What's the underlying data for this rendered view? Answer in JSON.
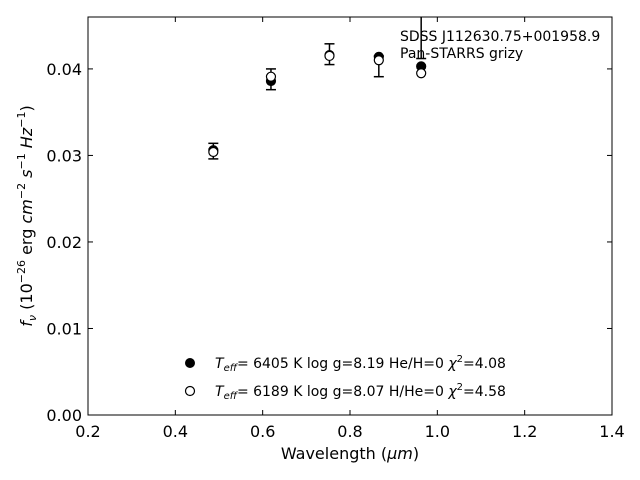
{
  "chart_data": {
    "type": "scatter",
    "xlabel_text": "Wavelength (",
    "xlabel_unit": "μm",
    "xlabel_close": ")",
    "ylabel": {
      "f": "f",
      "nu": "ν",
      "pre": " (10",
      "exp1": "−26",
      "erg": " erg ",
      "cm": "cm",
      "exp2": "−2",
      "s": " s",
      "exp3": "−1",
      "hz": " Hz",
      "exp4": "−1",
      "close": ")"
    },
    "xlim": [
      0.2,
      1.4
    ],
    "ylim": [
      0.0,
      0.046
    ],
    "xticks": [
      0.2,
      0.4,
      0.6,
      0.8,
      1.0,
      1.2,
      1.4
    ],
    "yticks": [
      0.0,
      0.01,
      0.02,
      0.03,
      0.04
    ],
    "xtick_labels": [
      "0.2",
      "0.4",
      "0.6",
      "0.8",
      "1.0",
      "1.2",
      "1.4"
    ],
    "ytick_labels": [
      "0.00",
      "0.01",
      "0.02",
      "0.03",
      "0.04"
    ],
    "annotations": [
      "SDSS J112630.75+001958.9",
      "Pan-STARRS grizy"
    ],
    "observed": {
      "x": [
        0.487,
        0.619,
        0.753,
        0.866,
        0.963
      ],
      "y": [
        0.0305,
        0.0388,
        0.0417,
        0.0403,
        0.0437
      ],
      "yerr": [
        0.0009,
        0.0012,
        0.0012,
        0.0012,
        0.0025
      ]
    },
    "series": [
      {
        "name_parts": {
          "teff": "T",
          "eff": "eff",
          "eq": "=  6405 K  log g=8.19  He/H=0  ",
          "chi": "χ",
          "sq": "2",
          "val": "=4.08"
        },
        "marker": "filled",
        "x": [
          0.487,
          0.619,
          0.753,
          0.866,
          0.963
        ],
        "y": [
          0.0306,
          0.0386,
          0.0416,
          0.0414,
          0.0403
        ]
      },
      {
        "name_parts": {
          "teff": "T",
          "eff": "eff",
          "eq": "=  6189 K  log g=8.07  H/He=0  ",
          "chi": "χ",
          "sq": "2",
          "val": "=4.58"
        },
        "marker": "open",
        "x": [
          0.487,
          0.619,
          0.753,
          0.866,
          0.963
        ],
        "y": [
          0.0304,
          0.0391,
          0.0415,
          0.041,
          0.0395
        ]
      }
    ],
    "legend_placement": "lower-center",
    "grid": false
  }
}
